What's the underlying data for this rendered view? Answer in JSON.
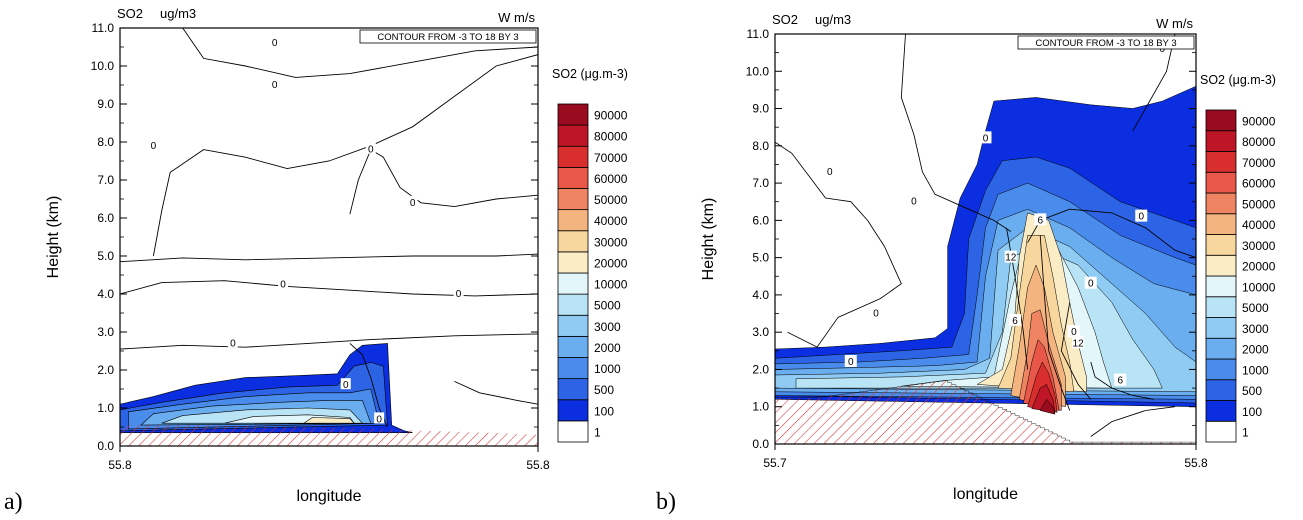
{
  "chart_data": [
    {
      "type": "contour",
      "panel_label": "a)",
      "field_label": "SO2",
      "field_unit": "ug/m3",
      "overlay_label": "W m/s",
      "contour_note": "CONTOUR FROM -3 TO 18 BY 3",
      "legend_title": "SO2 (μg.m-3)",
      "xlabel": "longitude",
      "ylabel": "Height (km)",
      "x_ticks": [
        "55.8",
        "55.8"
      ],
      "y_ticks": [
        "0.0",
        "1.0",
        "2.0",
        "3.0",
        "4.0",
        "5.0",
        "6.0",
        "7.0",
        "8.0",
        "9.0",
        "10.0",
        "11.0"
      ],
      "ylim": [
        0,
        11
      ],
      "contour_labels": [
        "0",
        "0",
        "0",
        "0",
        "0",
        "0",
        "0",
        "0",
        "0",
        "0"
      ],
      "levels": [
        "1",
        "100",
        "500",
        "1000",
        "2000",
        "3000",
        "5000",
        "10000",
        "20000",
        "30000",
        "40000",
        "50000",
        "60000",
        "70000",
        "80000",
        "90000"
      ]
    },
    {
      "type": "contour",
      "panel_label": "b)",
      "field_label": "SO2",
      "field_unit": "ug/m3",
      "overlay_label": "W m/s",
      "contour_note": "CONTOUR FROM -3 TO 18 BY 3",
      "legend_title": "SO2 (μg.m-3)",
      "xlabel": "longitude",
      "ylabel": "Height (km)",
      "x_ticks": [
        "55.7",
        "55.8"
      ],
      "y_ticks": [
        "0.0",
        "1.0",
        "2.0",
        "3.0",
        "4.0",
        "5.0",
        "6.0",
        "7.0",
        "8.0",
        "9.0",
        "10.0",
        "11.0"
      ],
      "ylim": [
        0,
        11
      ],
      "contour_labels": [
        "0",
        "0",
        "0",
        "0",
        "0",
        "0",
        "0",
        "0",
        "6",
        "12",
        "6",
        "0",
        "12",
        "6"
      ],
      "levels": [
        "1",
        "100",
        "500",
        "1000",
        "2000",
        "3000",
        "5000",
        "10000",
        "20000",
        "30000",
        "40000",
        "50000",
        "60000",
        "70000",
        "80000",
        "90000"
      ]
    }
  ],
  "colors": {
    "scale": [
      "#ffffff",
      "#0b2ee0",
      "#2d64e6",
      "#4a8ceb",
      "#6aaef0",
      "#8fcbf3",
      "#b9e4f6",
      "#e3f6f9",
      "#faedc6",
      "#f8d79f",
      "#f3b47f",
      "#ee8462",
      "#e85748",
      "#d92e2e",
      "#be1627",
      "#990b1e"
    ],
    "hatch": "#e03030"
  }
}
